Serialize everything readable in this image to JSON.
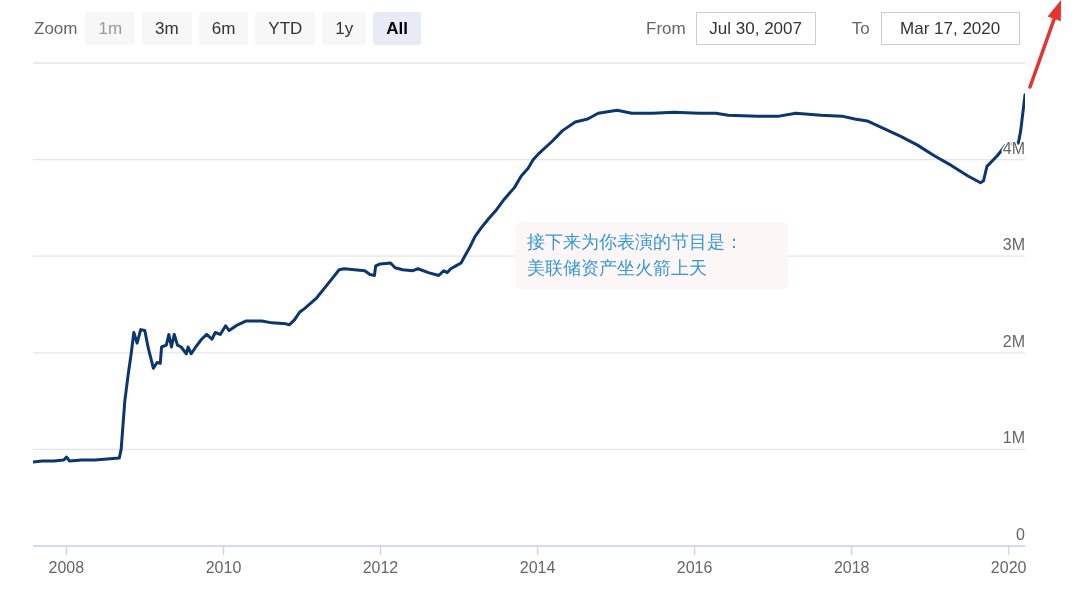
{
  "chart_data": {
    "type": "line",
    "color": "#0c3670",
    "x": [
      "2007-07-30",
      "2007-09-10",
      "2007-11-05",
      "2007-12-20",
      "2008-01-02",
      "2008-01-16",
      "2008-03-12",
      "2008-05-14",
      "2008-07-09",
      "2008-09-03",
      "2008-09-12",
      "2008-09-29",
      "2008-10-15",
      "2008-10-28",
      "2008-11-10",
      "2008-11-25",
      "2008-12-12",
      "2008-12-31",
      "2009-01-16",
      "2009-02-09",
      "2009-02-26",
      "2009-03-13",
      "2009-03-19",
      "2009-04-10",
      "2009-04-22",
      "2009-05-04",
      "2009-05-17",
      "2009-06-01",
      "2009-06-18",
      "2009-07-12",
      "2009-07-20",
      "2009-08-04",
      "2009-08-28",
      "2009-09-21",
      "2009-10-15",
      "2009-11-08",
      "2009-11-24",
      "2009-12-17",
      "2010-01-11",
      "2010-01-27",
      "2010-03-08",
      "2010-04-17",
      "2010-06-28",
      "2010-08-15",
      "2010-10-18",
      "2010-11-03",
      "2010-11-27",
      "2010-12-21",
      "2011-01-14",
      "2011-03-07",
      "2011-04-27",
      "2011-06-23",
      "2011-07-17",
      "2011-10-20",
      "2011-11-13",
      "2011-12-04",
      "2011-12-10",
      "2011-12-31",
      "2012-02-17",
      "2012-03-09",
      "2012-04-13",
      "2012-05-31",
      "2012-06-24",
      "2012-08-11",
      "2012-09-28",
      "2012-10-22",
      "2012-11-07",
      "2012-11-23",
      "2012-12-17",
      "2013-01-10",
      "2013-01-27",
      "2013-02-19",
      "2013-03-15",
      "2013-04-16",
      "2013-05-19",
      "2013-06-20",
      "2013-07-30",
      "2013-09-15",
      "2013-10-17",
      "2013-11-18",
      "2013-12-12",
      "2014-01-10",
      "2014-03-10",
      "2014-04-27",
      "2014-06-25",
      "2014-08-22",
      "2014-10-10",
      "2015-01-06",
      "2015-03-15",
      "2015-06-21",
      "2015-09-27",
      "2016-01-22",
      "2016-04-09",
      "2016-06-06",
      "2016-10-21",
      "2017-01-28",
      "2017-04-16",
      "2017-08-11",
      "2017-11-17",
      "2018-01-15",
      "2018-03-14",
      "2018-05-31",
      "2018-08-17",
      "2018-11-03",
      "2019-01-20",
      "2019-04-09",
      "2019-06-26",
      "2019-08-23",
      "2019-09-06",
      "2019-09-22",
      "2019-11-09",
      "2019-12-18",
      "2020-01-27",
      "2020-02-15",
      "2020-02-26",
      "2020-03-17"
    ],
    "values": [
      870000,
      880000,
      880000,
      890000,
      920000,
      880000,
      890000,
      890000,
      900000,
      910000,
      1000000,
      1500000,
      1780000,
      1980000,
      2210000,
      2100000,
      2240000,
      2230000,
      2050000,
      1840000,
      1900000,
      1890000,
      2060000,
      2080000,
      2190000,
      2060000,
      2190000,
      2080000,
      2060000,
      1990000,
      2060000,
      1990000,
      2070000,
      2140000,
      2190000,
      2140000,
      2210000,
      2190000,
      2280000,
      2230000,
      2290000,
      2330000,
      2330000,
      2310000,
      2300000,
      2290000,
      2340000,
      2420000,
      2460000,
      2560000,
      2700000,
      2860000,
      2870000,
      2850000,
      2810000,
      2800000,
      2900000,
      2920000,
      2930000,
      2880000,
      2860000,
      2850000,
      2870000,
      2830000,
      2800000,
      2850000,
      2830000,
      2870000,
      2900000,
      2930000,
      3000000,
      3090000,
      3200000,
      3300000,
      3390000,
      3470000,
      3590000,
      3710000,
      3830000,
      3910000,
      4000000,
      4070000,
      4190000,
      4300000,
      4390000,
      4420000,
      4480000,
      4510000,
      4480000,
      4480000,
      4490000,
      4480000,
      4480000,
      4460000,
      4450000,
      4450000,
      4480000,
      4460000,
      4450000,
      4420000,
      4400000,
      4320000,
      4240000,
      4150000,
      4040000,
      3940000,
      3830000,
      3760000,
      3780000,
      3930000,
      4040000,
      4150000,
      4170000,
      4170000,
      4300000,
      4670000
    ],
    "xlim": [
      "2007-07-30",
      "2020-03-17"
    ],
    "xticks": [
      "2008",
      "2010",
      "2012",
      "2014",
      "2016",
      "2018",
      "2020"
    ],
    "ylim": [
      0,
      5000000
    ],
    "yticks": [
      0,
      {
        "value": 1000000,
        "label": "1M"
      },
      {
        "value": 2000000,
        "label": "2M"
      },
      {
        "value": 3000000,
        "label": "3M"
      },
      {
        "value": 4000000,
        "label": "4M"
      },
      {
        "value": 5000000,
        "label": null
      }
    ],
    "grid": "y",
    "annotations": [
      "Zoom",
      "1m",
      "3m",
      "6m",
      "YTD",
      "1y",
      "All",
      "From",
      "Jul 30, 2007",
      "To",
      "Mar 17, 2020",
      "接下来为你表演的节目是：",
      "美联储资产坐火箭上天"
    ]
  }
}
